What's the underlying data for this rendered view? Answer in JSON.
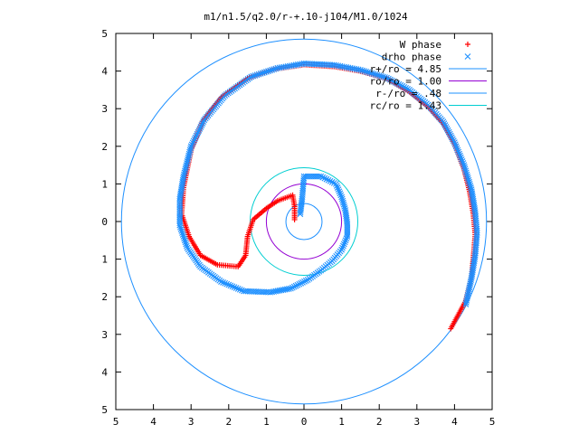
{
  "chart_data": {
    "type": "scatter",
    "title": "m1/n1.5/q2.0/r-+.10-j104/M1.0/1024",
    "xlabel": "",
    "ylabel": "",
    "xlim": [
      -5,
      5
    ],
    "ylim": [
      -5,
      5
    ],
    "grid": false,
    "legend_position": "top-right",
    "x_tick_labels": [
      "5",
      "4",
      "3",
      "2",
      "1",
      "0",
      "1",
      "2",
      "3",
      "4",
      "5"
    ],
    "y_tick_labels": [
      "5",
      "4",
      "3",
      "2",
      "1",
      "0",
      "1",
      "2",
      "3",
      "4",
      "5"
    ],
    "series": [
      {
        "name": "W phase",
        "marker": "+",
        "color": "#ff0000",
        "points": [
          [
            -0.25,
            0.05
          ],
          [
            -0.25,
            0.4
          ],
          [
            -0.3,
            0.7
          ],
          [
            -0.7,
            0.55
          ],
          [
            -1.0,
            0.35
          ],
          [
            -1.35,
            0.05
          ],
          [
            -1.5,
            -0.4
          ],
          [
            -1.55,
            -0.9
          ],
          [
            -1.75,
            -1.2
          ],
          [
            -2.3,
            -1.15
          ],
          [
            -2.75,
            -0.9
          ],
          [
            -3.05,
            -0.4
          ],
          [
            -3.25,
            0.2
          ],
          [
            -3.2,
            0.9
          ],
          [
            -3.0,
            1.9
          ],
          [
            -2.7,
            2.65
          ],
          [
            -2.2,
            3.3
          ],
          [
            -1.5,
            3.8
          ],
          [
            -0.8,
            4.05
          ],
          [
            0.0,
            4.17
          ],
          [
            0.8,
            4.12
          ],
          [
            1.5,
            4.0
          ],
          [
            2.2,
            3.8
          ],
          [
            2.8,
            3.45
          ],
          [
            3.3,
            3.05
          ],
          [
            3.7,
            2.6
          ],
          [
            4.0,
            2.05
          ],
          [
            4.25,
            1.4
          ],
          [
            4.4,
            0.8
          ],
          [
            4.5,
            0.2
          ],
          [
            4.55,
            -0.35
          ],
          [
            4.5,
            -0.95
          ],
          [
            4.45,
            -1.5
          ],
          [
            4.3,
            -2.1
          ],
          [
            3.9,
            -2.85
          ]
        ]
      },
      {
        "name": "drho phase",
        "marker": "x",
        "color": "#1e90ff",
        "points": [
          [
            -0.1,
            0.2
          ],
          [
            -0.05,
            0.6
          ],
          [
            0.0,
            1.2
          ],
          [
            0.45,
            1.2
          ],
          [
            0.85,
            1.0
          ],
          [
            1.0,
            0.65
          ],
          [
            1.1,
            0.3
          ],
          [
            1.15,
            -0.05
          ],
          [
            1.15,
            -0.4
          ],
          [
            1.0,
            -0.75
          ],
          [
            0.75,
            -1.05
          ],
          [
            0.45,
            -1.3
          ],
          [
            0.1,
            -1.55
          ],
          [
            -0.35,
            -1.78
          ],
          [
            -0.9,
            -1.88
          ],
          [
            -1.6,
            -1.85
          ],
          [
            -2.2,
            -1.6
          ],
          [
            -2.75,
            -1.2
          ],
          [
            -3.1,
            -0.7
          ],
          [
            -3.3,
            -0.1
          ],
          [
            -3.3,
            0.6
          ],
          [
            -3.2,
            1.2
          ],
          [
            -3.0,
            2.0
          ],
          [
            -2.65,
            2.7
          ],
          [
            -2.1,
            3.35
          ],
          [
            -1.4,
            3.85
          ],
          [
            -0.7,
            4.08
          ],
          [
            0.0,
            4.2
          ],
          [
            0.8,
            4.16
          ],
          [
            1.5,
            4.03
          ],
          [
            2.2,
            3.82
          ],
          [
            2.8,
            3.5
          ],
          [
            3.3,
            3.1
          ],
          [
            3.7,
            2.65
          ],
          [
            4.0,
            2.1
          ],
          [
            4.25,
            1.5
          ],
          [
            4.45,
            0.85
          ],
          [
            4.55,
            0.25
          ],
          [
            4.6,
            -0.3
          ],
          [
            4.55,
            -0.9
          ],
          [
            4.45,
            -1.5
          ],
          [
            4.3,
            -2.2
          ]
        ]
      }
    ],
    "circles": [
      {
        "name": "r+/ro = 4.85",
        "radius": 4.85,
        "color": "#1e90ff"
      },
      {
        "name": "ro/ro = 1.00",
        "radius": 1.0,
        "color": "#9400d3"
      },
      {
        "name": "r-/ro = .48",
        "radius": 0.48,
        "color": "#1e90ff"
      },
      {
        "name": "rc/ro = 1.43",
        "radius": 1.43,
        "color": "#00ced1"
      }
    ]
  }
}
